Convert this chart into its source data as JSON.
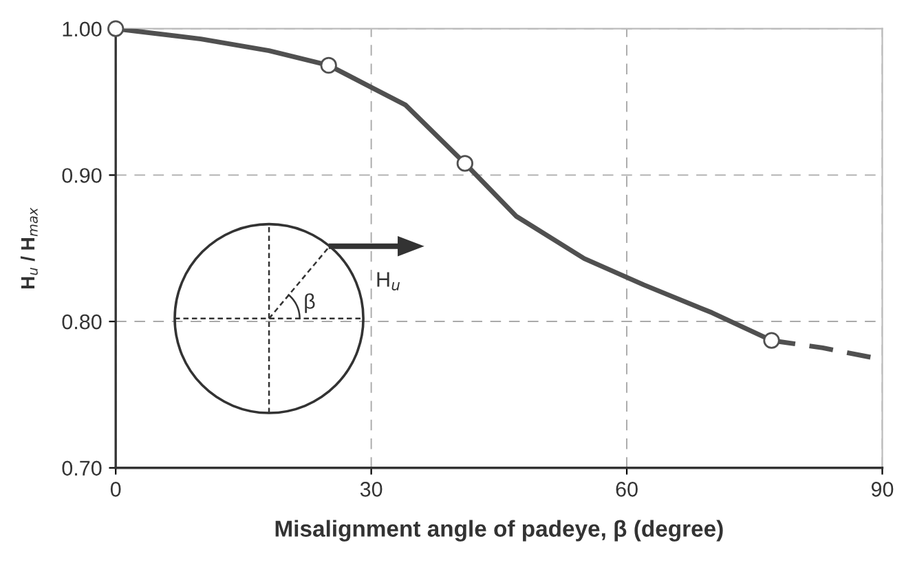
{
  "chart_data": {
    "type": "line",
    "xlabel": "Misalignment angle of padeye, β (degree)",
    "ylabel": "H$_{u}$ / H$_{max}$",
    "series": [
      {
        "color": "#505050",
        "line_style": "solid",
        "marker": "none",
        "x": [
          0,
          10,
          18,
          25,
          30,
          34,
          41,
          47,
          55,
          62,
          70,
          77
        ],
        "values": [
          1.0,
          0.993,
          0.985,
          0.975,
          0.96,
          0.948,
          0.908,
          0.872,
          0.843,
          0.825,
          0.806,
          0.787
        ]
      },
      {
        "color": "#505050",
        "line_style": "dashed",
        "marker": "none",
        "x": [
          77,
          83,
          90
        ],
        "values": [
          0.787,
          0.782,
          0.774
        ]
      },
      {
        "type": "scatter",
        "color": "#505050",
        "marker": "circle",
        "x": [
          0,
          25,
          41,
          77
        ],
        "values": [
          1.0,
          0.975,
          0.908,
          0.787
        ]
      }
    ],
    "xlim": [
      0,
      90
    ],
    "xticks": [
      0,
      30,
      60,
      90
    ],
    "ylim": [
      0.7,
      1.0
    ],
    "yticks": [
      {
        "value": 0.7,
        "label": "0.70"
      },
      {
        "value": 0.8,
        "label": "0.80"
      },
      {
        "value": 0.9,
        "label": "0.90"
      },
      {
        "value": 1.0,
        "label": "1.00"
      }
    ],
    "grid": true,
    "legend": false,
    "annotations": [
      "H$_{u}$",
      "β"
    ]
  }
}
